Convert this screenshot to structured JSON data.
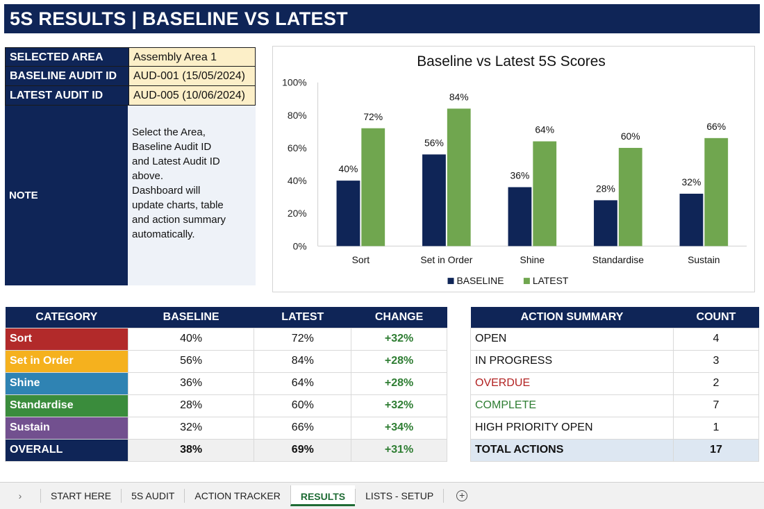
{
  "title": "5S RESULTS | BASELINE VS LATEST",
  "info": [
    {
      "label": "SELECTED AREA",
      "value": "Assembly Area 1"
    },
    {
      "label": "BASELINE AUDIT ID",
      "value": "AUD-001 (15/05/2024)"
    },
    {
      "label": "LATEST AUDIT ID",
      "value": "AUD-005 (10/06/2024)"
    }
  ],
  "note": {
    "label": "NOTE",
    "text": "Select the Area,\nBaseline Audit ID\nand Latest Audit ID\nabove.\nDashboard will\nupdate charts, table\nand action summary\nautomatically."
  },
  "chart_data": {
    "type": "bar",
    "title": "Baseline vs Latest 5S Scores",
    "categories": [
      "Sort",
      "Set in Order",
      "Shine",
      "Standardise",
      "Sustain"
    ],
    "series": [
      {
        "name": "BASELINE",
        "values": [
          40,
          56,
          36,
          28,
          32
        ],
        "color": "#0f2557"
      },
      {
        "name": "LATEST",
        "values": [
          72,
          84,
          64,
          60,
          66
        ],
        "color": "#70a64f"
      }
    ],
    "ylim": [
      0,
      100
    ],
    "yticks": [
      "0%",
      "20%",
      "40%",
      "60%",
      "80%",
      "100%"
    ],
    "value_suffix": "%",
    "legend": "bottom",
    "grid": false
  },
  "category_table": {
    "headers": [
      "CATEGORY",
      "BASELINE",
      "LATEST",
      "CHANGE"
    ],
    "rows": [
      {
        "category": "Sort",
        "baseline": "40%",
        "latest": "72%",
        "change": "+32%",
        "color": "#b22a2a"
      },
      {
        "category": "Set in Order",
        "baseline": "56%",
        "latest": "84%",
        "change": "+28%",
        "color": "#f5b11e"
      },
      {
        "category": "Shine",
        "baseline": "36%",
        "latest": "64%",
        "change": "+28%",
        "color": "#2f83b3"
      },
      {
        "category": "Standardise",
        "baseline": "28%",
        "latest": "60%",
        "change": "+32%",
        "color": "#3a8c3c"
      },
      {
        "category": "Sustain",
        "baseline": "32%",
        "latest": "66%",
        "change": "+34%",
        "color": "#72508f"
      }
    ],
    "overall": {
      "category": "OVERALL",
      "baseline": "38%",
      "latest": "69%",
      "change": "+31%"
    }
  },
  "action_table": {
    "headers": [
      "ACTION SUMMARY",
      "COUNT"
    ],
    "rows": [
      {
        "label": "OPEN",
        "count": "4",
        "color": "#111111"
      },
      {
        "label": "IN PROGRESS",
        "count": "3",
        "color": "#111111"
      },
      {
        "label": "OVERDUE",
        "count": "2",
        "color": "#b22222"
      },
      {
        "label": "COMPLETE",
        "count": "7",
        "color": "#2e7d32"
      },
      {
        "label": "HIGH PRIORITY OPEN",
        "count": "1",
        "color": "#111111"
      }
    ],
    "total": {
      "label": "TOTAL ACTIONS",
      "count": "17"
    }
  },
  "sheet_tabs": [
    {
      "label": "START HERE",
      "active": false
    },
    {
      "label": "5S AUDIT",
      "active": false
    },
    {
      "label": "ACTION TRACKER",
      "active": false
    },
    {
      "label": "RESULTS",
      "active": true
    },
    {
      "label": "LISTS - SETUP",
      "active": false
    }
  ],
  "tab_nav_icon": "chevron-right-icon",
  "add_sheet_icon": "plus-circle-icon"
}
